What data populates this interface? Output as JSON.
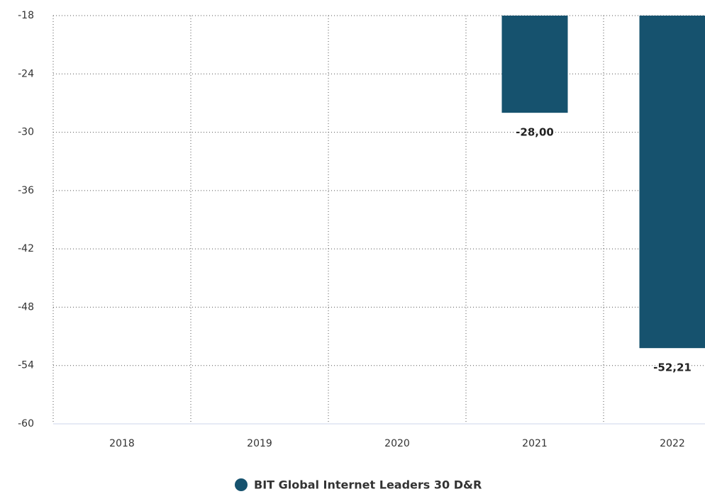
{
  "chart_data": {
    "type": "bar",
    "categories": [
      "2018",
      "2019",
      "2020",
      "2021",
      "2022"
    ],
    "series": [
      {
        "name": "BIT Global Internet Leaders 30 D&R",
        "color": "#16526e",
        "values": [
          null,
          null,
          null,
          -28.0,
          -52.21
        ],
        "value_labels": [
          null,
          null,
          null,
          "-28,00",
          "-52,21"
        ]
      }
    ],
    "ylim": [
      -60,
      -18
    ],
    "yticks": [
      -18,
      -24,
      -30,
      -36,
      -42,
      -48,
      -54,
      -60
    ],
    "grid": true
  }
}
